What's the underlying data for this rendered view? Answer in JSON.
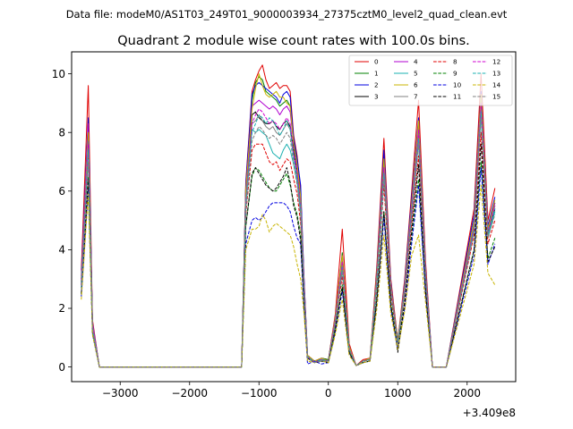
{
  "chart_data": {
    "type": "line",
    "suptitle": "Data file: modeM0/AS1T03_249T01_9000003934_27375cztM0_level2_quad_clean.evt",
    "title": "Quadrant 2 module wise count rates with 100.0s bins.",
    "xlabel": "",
    "ylabel": "",
    "x_offset_label": "+3.409e8",
    "xlim": [
      -3700,
      2700
    ],
    "ylim": [
      -0.5,
      10.75
    ],
    "xticks": [
      -3000,
      -2000,
      -1000,
      0,
      1000,
      2000
    ],
    "xtick_labels": [
      "−3000",
      "−2000",
      "−1000",
      "0",
      "1000",
      "2000"
    ],
    "yticks": [
      0,
      2,
      4,
      6,
      8,
      10
    ],
    "ytick_labels": [
      "0",
      "2",
      "4",
      "6",
      "8",
      "10"
    ],
    "grid": false,
    "legend_position": "top-right",
    "x": [
      -3560,
      -3460,
      -3400,
      -3300,
      -1250,
      -1190,
      -1100,
      -1050,
      -1000,
      -950,
      -900,
      -850,
      -800,
      -750,
      -700,
      -650,
      -600,
      -550,
      -500,
      -450,
      -400,
      -350,
      -300,
      -200,
      -100,
      0,
      100,
      200,
      300,
      400,
      500,
      600,
      700,
      800,
      900,
      1000,
      1100,
      1200,
      1300,
      1400,
      1500,
      1600,
      1700,
      2100,
      2200,
      2300,
      2400
    ],
    "series": [
      {
        "name": "0",
        "color": "#e00000",
        "dash": false,
        "values": [
          3.3,
          9.6,
          1.6,
          0.0,
          0.0,
          6.3,
          9.4,
          9.8,
          10.1,
          10.3,
          9.8,
          9.5,
          9.6,
          9.7,
          9.5,
          9.6,
          9.6,
          9.4,
          7.9,
          7.2,
          6.0,
          3.0,
          0.4,
          0.2,
          0.3,
          0.25,
          1.8,
          4.7,
          0.8,
          0.05,
          0.25,
          0.3,
          3.5,
          7.8,
          3.0,
          0.9,
          3.0,
          6.0,
          9.1,
          3.6,
          0.0,
          0.0,
          0.0,
          5.4,
          10.0,
          5.0,
          6.1
        ]
      },
      {
        "name": "1",
        "color": "#008000",
        "dash": false,
        "values": [
          3.0,
          8.4,
          1.5,
          0.0,
          0.0,
          6.1,
          9.1,
          9.7,
          9.9,
          9.8,
          9.4,
          9.3,
          9.2,
          9.1,
          8.9,
          9.0,
          9.1,
          8.9,
          7.7,
          6.9,
          5.8,
          2.8,
          0.4,
          0.2,
          0.3,
          0.25,
          1.7,
          3.9,
          0.7,
          0.05,
          0.2,
          0.3,
          3.2,
          7.0,
          2.8,
          0.9,
          2.8,
          5.6,
          8.4,
          3.3,
          0.0,
          0.0,
          0.0,
          5.0,
          9.0,
          4.6,
          5.6
        ]
      },
      {
        "name": "2",
        "color": "#0000e0",
        "dash": false,
        "values": [
          3.1,
          8.5,
          1.5,
          0.0,
          0.0,
          6.2,
          9.3,
          9.6,
          9.7,
          9.6,
          9.5,
          9.4,
          9.3,
          9.2,
          9.0,
          9.3,
          9.4,
          9.2,
          7.8,
          7.1,
          6.2,
          3.0,
          0.4,
          0.15,
          0.3,
          0.2,
          1.7,
          3.7,
          0.6,
          0.05,
          0.2,
          0.25,
          3.3,
          7.4,
          2.9,
          0.8,
          2.9,
          5.8,
          8.5,
          3.4,
          0.0,
          0.0,
          0.0,
          5.2,
          9.4,
          4.8,
          5.8
        ]
      },
      {
        "name": "3",
        "color": "#000000",
        "dash": false,
        "values": [
          2.9,
          8.1,
          1.4,
          0.0,
          0.0,
          5.8,
          8.6,
          8.7,
          8.5,
          8.4,
          8.3,
          8.3,
          8.4,
          8.2,
          8.1,
          8.3,
          8.4,
          8.2,
          7.4,
          6.6,
          5.4,
          2.6,
          0.35,
          0.15,
          0.25,
          0.2,
          1.6,
          3.5,
          0.6,
          0.05,
          0.2,
          0.25,
          3.0,
          6.7,
          2.6,
          0.8,
          2.7,
          5.3,
          7.9,
          3.1,
          0.0,
          0.0,
          0.0,
          4.8,
          8.8,
          4.5,
          5.4
        ]
      },
      {
        "name": "4",
        "color": "#b000d0",
        "dash": false,
        "values": [
          3.0,
          8.3,
          1.5,
          0.0,
          0.0,
          6.0,
          8.9,
          9.0,
          9.1,
          9.0,
          8.9,
          8.8,
          8.9,
          8.8,
          8.6,
          8.8,
          8.9,
          8.7,
          7.6,
          6.8,
          5.7,
          2.8,
          0.4,
          0.2,
          0.3,
          0.2,
          1.7,
          3.8,
          0.7,
          0.05,
          0.2,
          0.3,
          3.1,
          7.0,
          2.8,
          0.85,
          2.8,
          5.5,
          8.3,
          3.3,
          0.0,
          0.0,
          0.0,
          5.0,
          9.2,
          4.7,
          5.6
        ]
      },
      {
        "name": "5",
        "color": "#1ab0b0",
        "dash": false,
        "values": [
          2.8,
          7.8,
          1.4,
          0.0,
          0.0,
          5.6,
          8.1,
          8.0,
          8.1,
          8.0,
          7.9,
          7.6,
          7.3,
          7.2,
          7.1,
          7.4,
          7.6,
          7.4,
          6.9,
          6.3,
          5.2,
          2.6,
          0.35,
          0.15,
          0.25,
          0.2,
          1.5,
          3.3,
          0.6,
          0.05,
          0.2,
          0.25,
          2.9,
          6.5,
          2.6,
          0.8,
          2.6,
          5.2,
          7.7,
          3.0,
          0.0,
          0.0,
          0.0,
          4.7,
          8.6,
          4.4,
          5.3
        ]
      },
      {
        "name": "6",
        "color": "#c8b400",
        "dash": false,
        "values": [
          2.9,
          8.0,
          1.4,
          0.0,
          0.0,
          6.0,
          8.8,
          9.5,
          10.0,
          9.6,
          9.3,
          9.2,
          9.3,
          9.4,
          9.2,
          9.2,
          9.0,
          8.9,
          7.6,
          6.9,
          5.8,
          2.8,
          0.4,
          0.2,
          0.3,
          0.2,
          1.7,
          3.8,
          0.7,
          0.05,
          0.2,
          0.3,
          3.2,
          7.1,
          2.8,
          0.85,
          2.8,
          5.6,
          8.4,
          3.3,
          0.0,
          0.0,
          0.0,
          5.0,
          9.3,
          4.7,
          5.7
        ]
      },
      {
        "name": "7",
        "color": "#808080",
        "dash": false,
        "values": [
          2.8,
          7.7,
          1.4,
          0.0,
          0.0,
          5.7,
          8.3,
          8.4,
          8.6,
          8.4,
          8.2,
          8.1,
          8.2,
          8.0,
          7.9,
          8.1,
          8.3,
          8.1,
          7.2,
          6.5,
          5.4,
          2.7,
          0.35,
          0.15,
          0.25,
          0.2,
          1.6,
          3.5,
          0.6,
          0.05,
          0.2,
          0.25,
          3.0,
          6.8,
          2.7,
          0.8,
          2.7,
          5.4,
          8.0,
          3.1,
          0.0,
          0.0,
          0.0,
          4.8,
          8.9,
          4.5,
          5.5
        ]
      },
      {
        "name": "8",
        "color": "#e00000",
        "dash": true,
        "values": [
          2.7,
          7.2,
          1.3,
          0.0,
          0.0,
          5.2,
          7.4,
          7.6,
          7.6,
          7.6,
          7.3,
          7.0,
          6.9,
          7.0,
          6.7,
          6.9,
          7.1,
          7.0,
          6.4,
          5.9,
          4.9,
          2.5,
          0.3,
          0.15,
          0.25,
          0.2,
          1.5,
          3.1,
          0.55,
          0.05,
          0.2,
          0.25,
          2.7,
          6.2,
          2.5,
          0.75,
          2.5,
          4.9,
          7.2,
          2.9,
          0.0,
          0.0,
          0.0,
          4.5,
          8.0,
          4.2,
          5.0
        ]
      },
      {
        "name": "9",
        "color": "#008000",
        "dash": true,
        "values": [
          2.5,
          6.5,
          1.2,
          0.0,
          0.0,
          4.8,
          6.5,
          6.8,
          6.7,
          6.5,
          6.3,
          6.1,
          6.0,
          6.0,
          6.2,
          6.4,
          6.6,
          6.2,
          5.6,
          5.2,
          4.5,
          2.2,
          0.3,
          0.15,
          0.2,
          0.15,
          1.3,
          2.8,
          0.5,
          0.05,
          0.15,
          0.2,
          2.4,
          5.3,
          2.2,
          0.7,
          2.2,
          4.4,
          6.4,
          2.6,
          0.0,
          0.0,
          0.0,
          4.0,
          7.0,
          3.7,
          4.4
        ]
      },
      {
        "name": "10",
        "color": "#0000e0",
        "dash": true,
        "values": [
          2.4,
          6.1,
          1.1,
          0.0,
          0.0,
          4.2,
          5.0,
          5.1,
          5.0,
          5.1,
          5.3,
          5.5,
          5.6,
          5.6,
          5.6,
          5.6,
          5.5,
          5.3,
          4.8,
          4.4,
          4.2,
          2.0,
          0.1,
          0.2,
          0.1,
          0.15,
          1.2,
          2.6,
          0.45,
          0.05,
          0.15,
          0.2,
          2.2,
          5.1,
          2.0,
          0.6,
          2.0,
          4.2,
          6.2,
          2.5,
          0.0,
          0.0,
          0.0,
          3.8,
          6.8,
          3.5,
          4.2
        ]
      },
      {
        "name": "11",
        "color": "#000000",
        "dash": true,
        "values": [
          2.5,
          6.4,
          1.2,
          0.0,
          0.0,
          4.8,
          6.6,
          6.8,
          6.6,
          6.4,
          6.2,
          6.1,
          6.0,
          6.1,
          6.3,
          6.5,
          6.8,
          6.3,
          5.5,
          5.1,
          4.3,
          2.1,
          0.3,
          0.15,
          0.2,
          0.15,
          1.3,
          2.7,
          0.5,
          0.05,
          0.15,
          0.2,
          2.3,
          5.3,
          2.1,
          0.5,
          2.2,
          4.6,
          6.9,
          2.6,
          0.0,
          0.0,
          0.0,
          4.0,
          7.6,
          3.6,
          4.1
        ]
      },
      {
        "name": "12",
        "color": "#d000d0",
        "dash": true,
        "values": [
          2.8,
          7.6,
          1.4,
          0.0,
          0.0,
          5.6,
          8.3,
          8.6,
          8.8,
          8.7,
          8.5,
          8.3,
          8.4,
          8.3,
          8.1,
          8.3,
          8.5,
          8.3,
          7.3,
          6.6,
          5.5,
          2.7,
          0.35,
          0.15,
          0.25,
          0.2,
          1.6,
          3.6,
          0.65,
          0.05,
          0.2,
          0.25,
          3.0,
          6.8,
          2.7,
          0.8,
          2.7,
          5.4,
          8.1,
          3.2,
          0.0,
          0.0,
          0.0,
          4.8,
          9.0,
          4.6,
          5.5
        ]
      },
      {
        "name": "13",
        "color": "#1ab0b0",
        "dash": true,
        "values": [
          2.7,
          7.4,
          1.3,
          0.0,
          0.0,
          5.5,
          8.0,
          8.3,
          8.6,
          8.5,
          8.3,
          8.5,
          8.4,
          8.2,
          7.9,
          8.1,
          8.4,
          8.1,
          7.1,
          6.4,
          5.4,
          2.6,
          0.35,
          0.15,
          0.25,
          0.2,
          1.5,
          3.4,
          0.6,
          0.05,
          0.2,
          0.25,
          2.9,
          6.6,
          2.6,
          0.8,
          2.6,
          5.2,
          7.8,
          3.1,
          0.0,
          0.0,
          0.0,
          4.7,
          8.7,
          4.5,
          5.4
        ]
      },
      {
        "name": "14",
        "color": "#c8b400",
        "dash": true,
        "values": [
          2.3,
          5.9,
          1.1,
          0.0,
          0.0,
          4.0,
          4.7,
          4.7,
          4.8,
          5.2,
          5.0,
          4.6,
          4.8,
          4.9,
          4.8,
          4.7,
          4.6,
          4.5,
          4.1,
          3.5,
          3.0,
          1.8,
          0.2,
          0.15,
          0.2,
          0.15,
          1.1,
          2.3,
          0.4,
          0.05,
          0.15,
          0.2,
          2.0,
          4.5,
          1.8,
          0.6,
          1.9,
          3.8,
          4.5,
          2.2,
          0.0,
          0.0,
          0.0,
          3.5,
          6.2,
          3.2,
          2.8
        ]
      },
      {
        "name": "15",
        "color": "#808080",
        "dash": true,
        "values": [
          2.6,
          7.0,
          1.3,
          0.0,
          0.0,
          5.3,
          7.7,
          8.0,
          8.2,
          8.1,
          7.9,
          7.8,
          7.9,
          7.8,
          7.6,
          7.8,
          8.0,
          7.8,
          6.9,
          6.2,
          5.2,
          2.5,
          0.3,
          0.15,
          0.2,
          0.2,
          1.5,
          3.3,
          0.6,
          0.05,
          0.2,
          0.25,
          2.8,
          6.4,
          2.6,
          0.75,
          2.6,
          5.1,
          7.6,
          3.0,
          0.0,
          0.0,
          0.0,
          4.6,
          8.5,
          4.4,
          5.2
        ]
      }
    ]
  }
}
